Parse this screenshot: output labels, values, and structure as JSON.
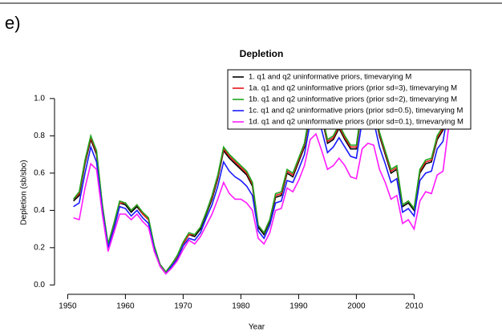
{
  "chart_data": {
    "type": "line",
    "panel_label": "e)",
    "title": "Depletion",
    "x_label": "Year",
    "y_label": "Depletion (sb/sbo)",
    "x": [
      1951,
      1952,
      1953,
      1954,
      1955,
      1956,
      1957,
      1958,
      1959,
      1960,
      1961,
      1962,
      1963,
      1964,
      1965,
      1966,
      1967,
      1968,
      1969,
      1970,
      1971,
      1972,
      1973,
      1974,
      1975,
      1976,
      1977,
      1978,
      1979,
      1980,
      1981,
      1982,
      1983,
      1984,
      1985,
      1986,
      1987,
      1988,
      1989,
      1990,
      1991,
      1992,
      1993,
      1994,
      1995,
      1996,
      1997,
      1998,
      1999,
      2000,
      2001,
      2002,
      2003,
      2004,
      2005,
      2006,
      2007,
      2008,
      2009,
      2010,
      2011,
      2012,
      2013,
      2014,
      2015,
      2016
    ],
    "series": [
      {
        "name": "1. q1 and q2 uninformative priors, timevarying M",
        "color": "#000000",
        "values": [
          0.45,
          0.48,
          0.65,
          0.78,
          0.7,
          0.42,
          0.21,
          0.32,
          0.44,
          0.43,
          0.39,
          0.42,
          0.38,
          0.35,
          0.2,
          0.11,
          0.07,
          0.11,
          0.15,
          0.22,
          0.27,
          0.26,
          0.3,
          0.38,
          0.46,
          0.57,
          0.72,
          0.68,
          0.65,
          0.62,
          0.59,
          0.53,
          0.31,
          0.27,
          0.34,
          0.47,
          0.48,
          0.6,
          0.58,
          0.66,
          0.74,
          0.92,
          1.0,
          0.9,
          0.76,
          0.78,
          0.84,
          0.78,
          0.73,
          0.73,
          0.95,
          1.02,
          0.95,
          0.8,
          0.7,
          0.6,
          0.62,
          0.42,
          0.44,
          0.4,
          0.6,
          0.65,
          0.66,
          0.78,
          0.83,
          1.0
        ]
      },
      {
        "name": "1a. q1 and q2 uninformative priors (prior sd=3), timevarying M",
        "color": "#e8141b",
        "values": [
          0.46,
          0.49,
          0.66,
          0.79,
          0.71,
          0.43,
          0.21,
          0.32,
          0.44,
          0.44,
          0.4,
          0.43,
          0.38,
          0.35,
          0.2,
          0.11,
          0.07,
          0.11,
          0.15,
          0.22,
          0.27,
          0.27,
          0.31,
          0.39,
          0.47,
          0.58,
          0.73,
          0.69,
          0.66,
          0.63,
          0.6,
          0.54,
          0.32,
          0.28,
          0.35,
          0.48,
          0.49,
          0.61,
          0.59,
          0.67,
          0.75,
          0.93,
          1.01,
          0.91,
          0.77,
          0.79,
          0.85,
          0.79,
          0.74,
          0.74,
          0.96,
          1.03,
          0.96,
          0.81,
          0.71,
          0.61,
          0.63,
          0.43,
          0.45,
          0.41,
          0.61,
          0.66,
          0.67,
          0.79,
          0.84,
          1.01
        ]
      },
      {
        "name": "1b. q1 and q2 uninformative priors (prior sd=2),  timevarying M",
        "color": "#1ea51e",
        "values": [
          0.46,
          0.5,
          0.67,
          0.8,
          0.72,
          0.43,
          0.22,
          0.33,
          0.45,
          0.44,
          0.4,
          0.43,
          0.39,
          0.36,
          0.21,
          0.11,
          0.07,
          0.11,
          0.16,
          0.23,
          0.28,
          0.27,
          0.31,
          0.39,
          0.48,
          0.59,
          0.74,
          0.7,
          0.67,
          0.64,
          0.61,
          0.55,
          0.32,
          0.28,
          0.35,
          0.49,
          0.5,
          0.62,
          0.6,
          0.68,
          0.76,
          0.94,
          1.02,
          0.92,
          0.78,
          0.8,
          0.86,
          0.8,
          0.75,
          0.75,
          0.97,
          1.04,
          0.97,
          0.82,
          0.72,
          0.62,
          0.64,
          0.43,
          0.45,
          0.41,
          0.62,
          0.67,
          0.68,
          0.8,
          0.85,
          1.02
        ]
      },
      {
        "name": "1c. q1 and q2 uninformative priors (prior sd=0.5),  timevarying M",
        "color": "#1a1aff",
        "values": [
          0.42,
          0.44,
          0.6,
          0.74,
          0.66,
          0.4,
          0.2,
          0.3,
          0.42,
          0.41,
          0.37,
          0.4,
          0.36,
          0.33,
          0.19,
          0.1,
          0.06,
          0.1,
          0.14,
          0.21,
          0.25,
          0.24,
          0.28,
          0.36,
          0.43,
          0.53,
          0.66,
          0.61,
          0.58,
          0.56,
          0.53,
          0.48,
          0.29,
          0.25,
          0.32,
          0.44,
          0.45,
          0.56,
          0.55,
          0.62,
          0.7,
          0.87,
          0.93,
          0.83,
          0.71,
          0.74,
          0.79,
          0.74,
          0.69,
          0.68,
          0.88,
          0.95,
          0.88,
          0.74,
          0.65,
          0.55,
          0.57,
          0.39,
          0.41,
          0.37,
          0.56,
          0.6,
          0.61,
          0.73,
          0.77,
          0.95
        ]
      },
      {
        "name": "1d. q1 and q2 uninformative priors (prior sd=0.1), timevarying M",
        "color": "#ff1aff",
        "values": [
          0.36,
          0.35,
          0.52,
          0.65,
          0.62,
          0.38,
          0.18,
          0.28,
          0.38,
          0.38,
          0.35,
          0.38,
          0.34,
          0.31,
          0.18,
          0.1,
          0.06,
          0.09,
          0.13,
          0.19,
          0.24,
          0.22,
          0.26,
          0.32,
          0.38,
          0.46,
          0.55,
          0.49,
          0.46,
          0.46,
          0.44,
          0.4,
          0.25,
          0.22,
          0.28,
          0.4,
          0.41,
          0.52,
          0.5,
          0.56,
          0.64,
          0.78,
          0.81,
          0.72,
          0.62,
          0.64,
          0.68,
          0.64,
          0.58,
          0.57,
          0.73,
          0.76,
          0.75,
          0.62,
          0.55,
          0.46,
          0.48,
          0.33,
          0.35,
          0.3,
          0.45,
          0.5,
          0.49,
          0.59,
          0.61,
          0.85
        ]
      }
    ],
    "xlim": [
      1948,
      2018
    ],
    "ylim": [
      -0.02,
      1.15
    ],
    "xticks": [
      1950,
      1960,
      1970,
      1980,
      1990,
      2000,
      2010
    ],
    "yticks": [
      {
        "value": 0,
        "label": "0.0"
      },
      0.2,
      0.4,
      0.6,
      0.8,
      {
        "value": 1,
        "label": "1.0"
      }
    ],
    "legend": "topright"
  }
}
